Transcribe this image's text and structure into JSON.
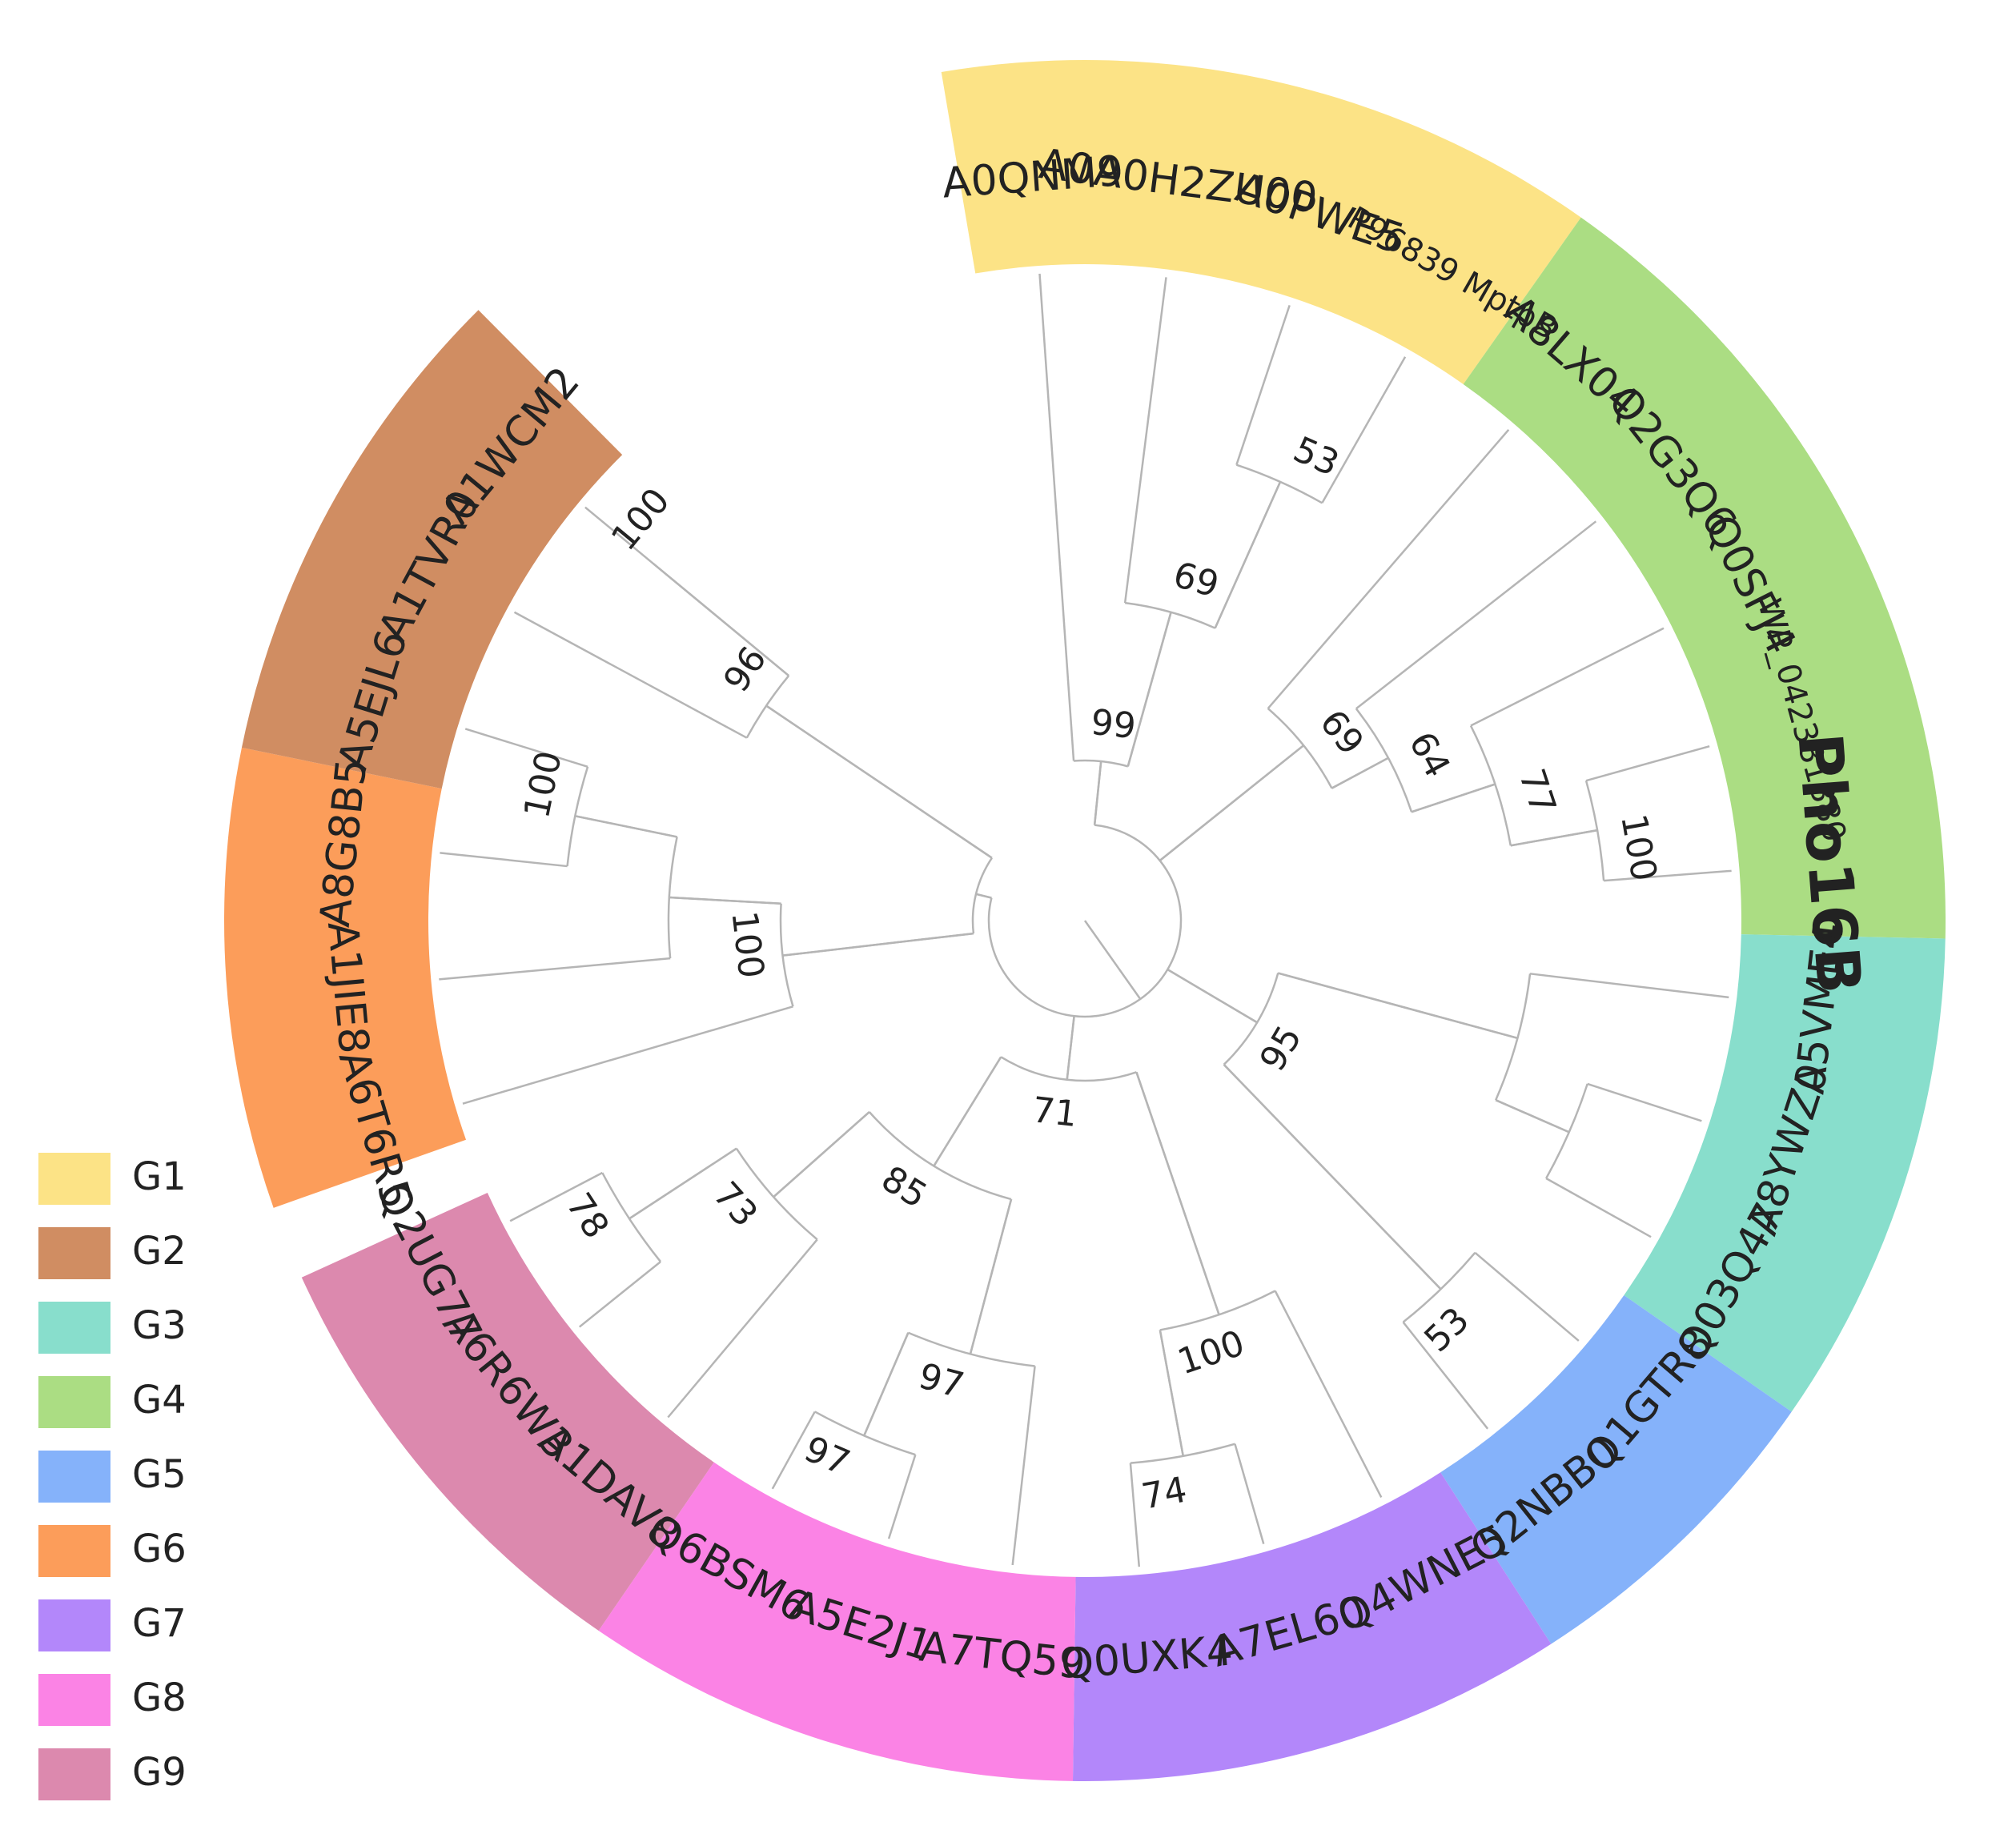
{
  "tree": {
    "groups": [
      {
        "id": "G1",
        "color": "#FCE386",
        "leaves": [
          "A0QNM9",
          "A0A0H2ZU00",
          "A0PWE5",
          "P96839 MptpB"
        ]
      },
      {
        "id": "G4",
        "color": "#ABDD83",
        "leaves": [
          "A8LX04",
          "Q2G3Q6",
          "Q0SFJ4",
          "WP_042381880",
          "Pho16B"
        ]
      },
      {
        "id": "G3",
        "color": "#88DECC",
        "leaves": [
          "A5VME4",
          "A8YWZ0",
          "Q03Q47"
        ]
      },
      {
        "id": "G5",
        "color": "#85B2FA",
        "leaves": [
          "Q1GTR8",
          "Q2NBB0"
        ]
      },
      {
        "id": "G7",
        "color": "#B387FA",
        "leaves": [
          "Q4WNE5",
          "A7EL60",
          "Q0UXK4"
        ]
      },
      {
        "id": "G8",
        "color": "#FB83E5",
        "leaves": [
          "A7TQ59",
          "A5E2J1",
          "Q6BSM6"
        ]
      },
      {
        "id": "G9",
        "color": "#DC89AE",
        "leaves": [
          "A1DAV8",
          "A6R6W3",
          "Q2UG77"
        ]
      },
      {
        "id": "G6",
        "color": "#FC9D5A",
        "leaves": [
          "A6T6R5",
          "A1JIE8",
          "A8G8B5"
        ]
      },
      {
        "id": "G2",
        "color": "#D08D62",
        "leaves": [
          "A5EJL6",
          "A1TVR0",
          "A1WCM2"
        ]
      }
    ],
    "highlighted_leaf": "Pho16B",
    "bootstrap": {
      "g1_root": "99",
      "g1_a": "69",
      "g1_b": "53",
      "g4_root": "69",
      "g4_a": "64",
      "g4_b": "77",
      "g4_c": "100",
      "lower_root": "95",
      "lower_g5": "53",
      "g7_root": "100",
      "g7_a": "74",
      "mid_root": "71",
      "mid_a": "85",
      "mid_b": "97",
      "mid_c": "97",
      "g9_root": "73",
      "g9_a": "78",
      "g6g2_root": "100",
      "g6_a": "100",
      "g2_root": "96",
      "g2_a": "100"
    }
  },
  "legend": [
    {
      "label": "G1",
      "color": "#FCE386"
    },
    {
      "label": "G2",
      "color": "#D08D62"
    },
    {
      "label": "G3",
      "color": "#88DECC"
    },
    {
      "label": "G4",
      "color": "#ABDD83"
    },
    {
      "label": "G5",
      "color": "#85B2FA"
    },
    {
      "label": "G6",
      "color": "#FC9D5A"
    },
    {
      "label": "G7",
      "color": "#B387FA"
    },
    {
      "label": "G8",
      "color": "#FB83E5"
    },
    {
      "label": "G9",
      "color": "#DC89AE"
    }
  ]
}
